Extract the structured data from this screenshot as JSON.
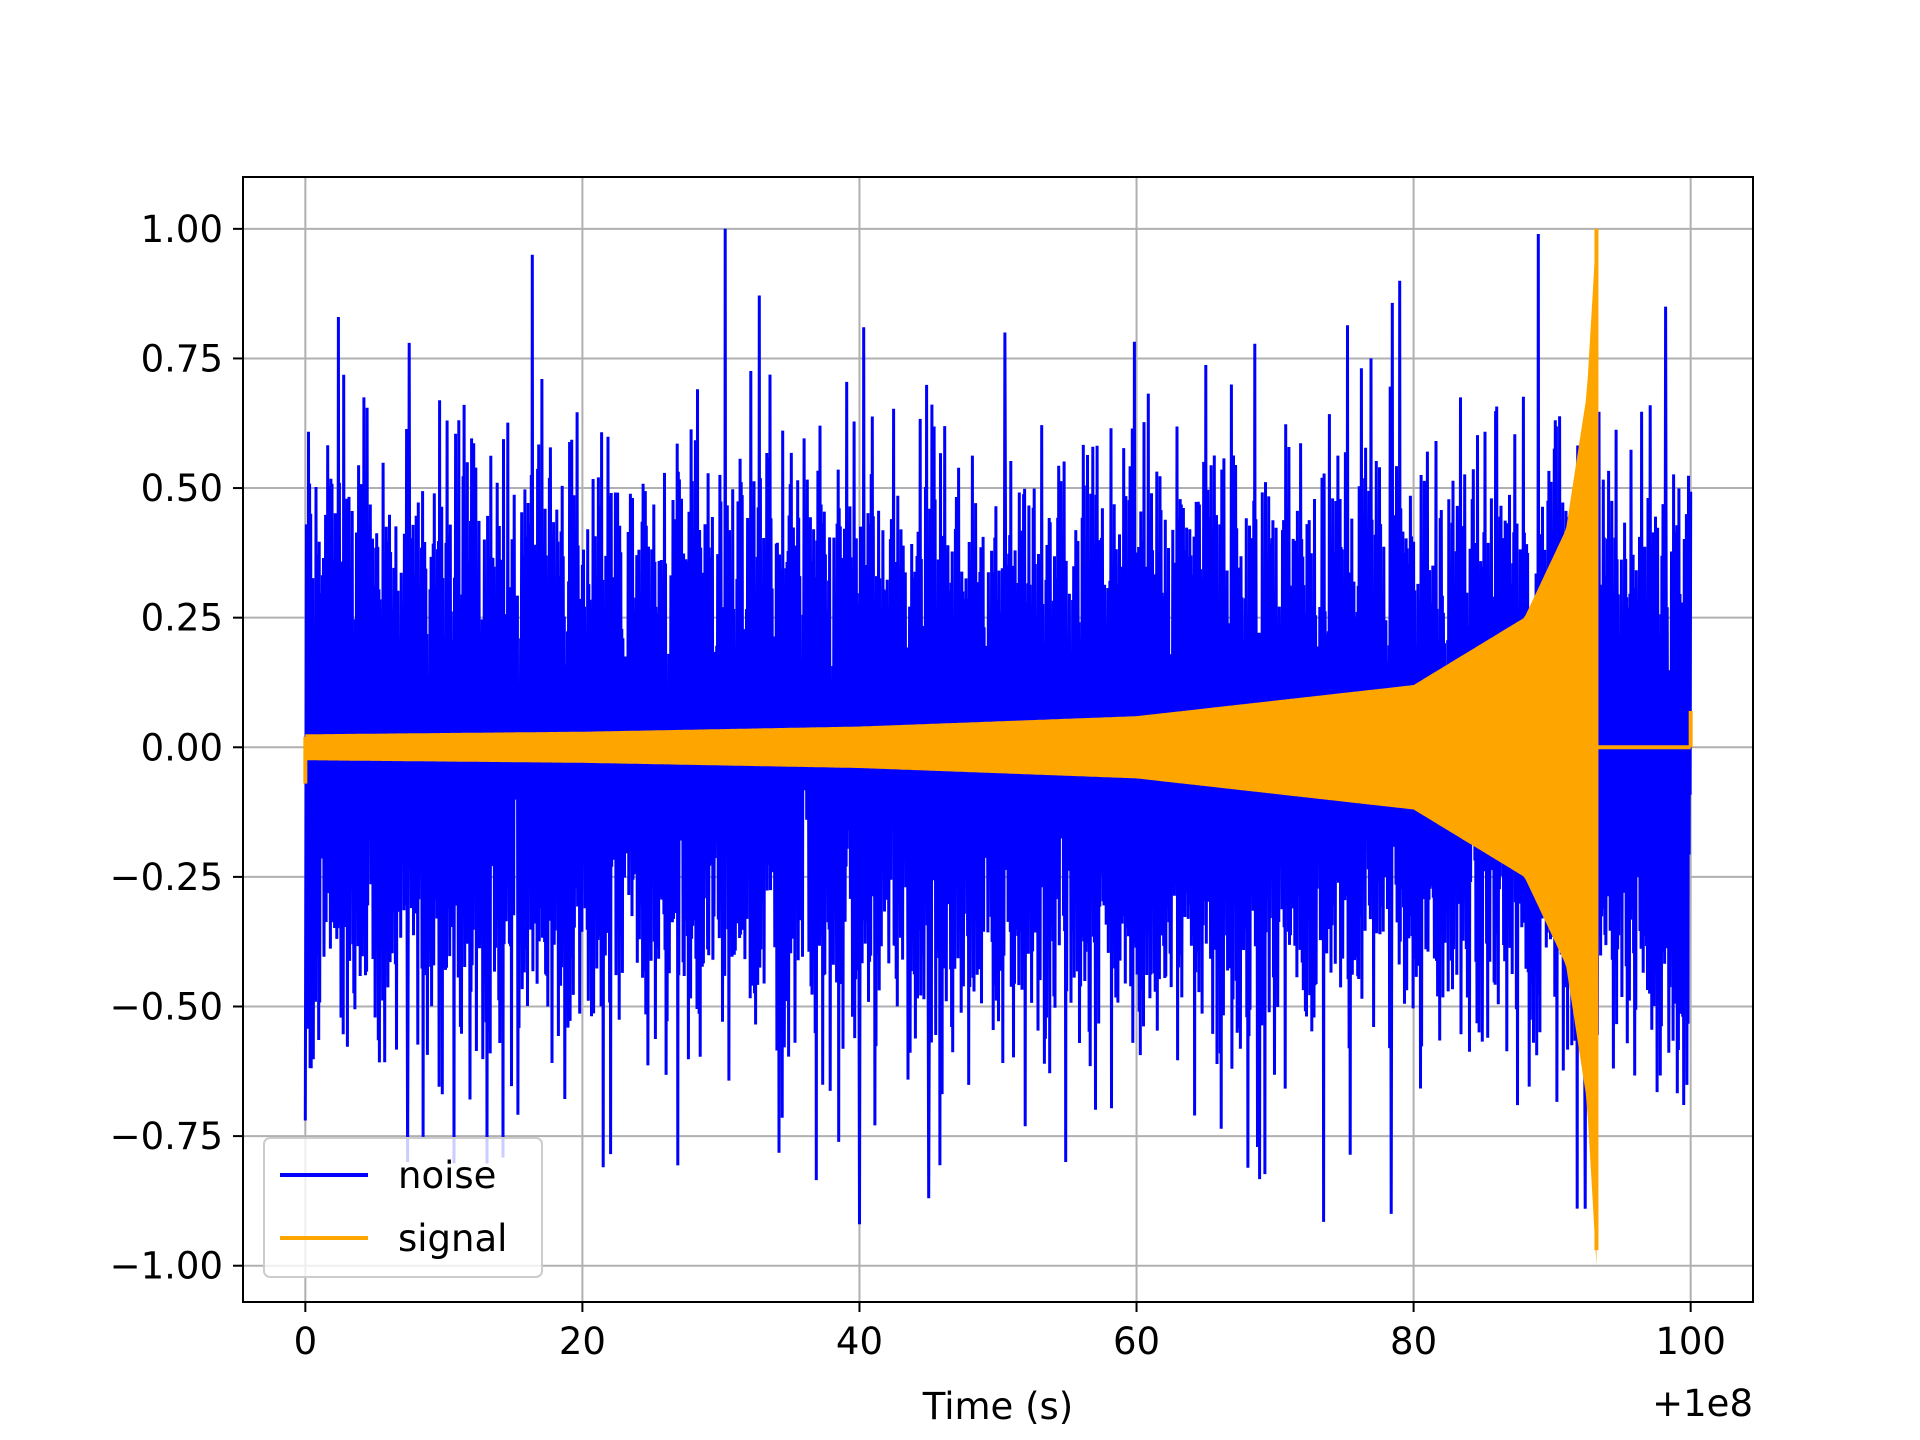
{
  "chart_data": {
    "type": "line",
    "title": "",
    "xlabel": "Time (s)",
    "ylabel": "",
    "x_offset_label": "+1e8",
    "xlim": [
      -4.5,
      104.5
    ],
    "ylim": [
      -1.07,
      1.1
    ],
    "xticks": [
      0,
      20,
      40,
      60,
      80,
      100
    ],
    "xtick_labels": [
      "0",
      "20",
      "40",
      "60",
      "80",
      "100"
    ],
    "yticks": [
      1.0,
      0.75,
      0.5,
      0.25,
      0.0,
      -0.25,
      -0.5,
      -0.75,
      -1.0
    ],
    "ytick_labels": [
      "1.00",
      "0.75",
      "0.50",
      "0.25",
      "0.00",
      "−0.25",
      "−0.50",
      "−0.75",
      "−1.00"
    ],
    "grid": true,
    "legend_position": "lower-left",
    "series": [
      {
        "name": "noise",
        "color": "#0000ff",
        "description_values": {
          "x_range": [
            0,
            100
          ],
          "typical_band": [
            -0.55,
            0.55
          ],
          "peaks": [
            {
              "x": 2.4,
              "y": 0.83
            },
            {
              "x": 16.4,
              "y": 0.95
            },
            {
              "x": 30.3,
              "y": 1.0
            },
            {
              "x": 40.3,
              "y": 0.81
            },
            {
              "x": 50.5,
              "y": 0.8
            },
            {
              "x": 79.0,
              "y": 0.9
            },
            {
              "x": 89.0,
              "y": 0.99
            },
            {
              "x": 98.2,
              "y": 0.85
            },
            {
              "x": 7.5,
              "y": 0.78
            },
            {
              "x": 40.0,
              "y": -0.92
            },
            {
              "x": 21.5,
              "y": -0.81
            },
            {
              "x": 54.9,
              "y": -0.8
            },
            {
              "x": 78.4,
              "y": -0.9
            },
            {
              "x": 92.4,
              "y": -0.89
            },
            {
              "x": 45.0,
              "y": -0.87
            },
            {
              "x": 7.4,
              "y": -0.8
            },
            {
              "x": 0.0,
              "y": -0.72
            },
            {
              "x": 99.5,
              "y": -0.69
            }
          ]
        }
      },
      {
        "name": "signal",
        "color": "#ffa500",
        "description_values": {
          "type": "chirp",
          "x_start": 0,
          "x_merger": 93.2,
          "x_end": 100,
          "envelope": [
            {
              "x": 0,
              "y": 0.025
            },
            {
              "x": 20,
              "y": 0.03
            },
            {
              "x": 40,
              "y": 0.04
            },
            {
              "x": 60,
              "y": 0.06
            },
            {
              "x": 80,
              "y": 0.12
            },
            {
              "x": 88,
              "y": 0.25
            },
            {
              "x": 91,
              "y": 0.42
            },
            {
              "x": 92.5,
              "y": 0.68
            },
            {
              "x": 93.2,
              "y": 1.0
            }
          ],
          "merger_min": -0.97,
          "post_merger_level": 0.0,
          "end_spike": 0.07
        }
      }
    ]
  }
}
